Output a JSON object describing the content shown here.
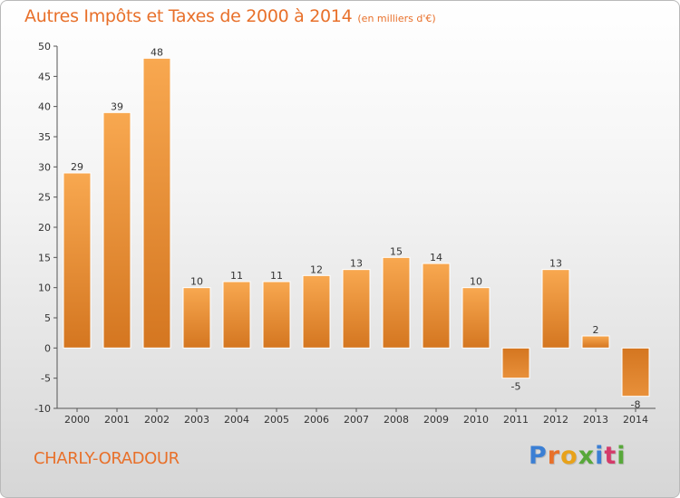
{
  "title": "Autres Impôts et Taxes de 2000 à 2014",
  "subtitle": "(en milliers d'€)",
  "commune": "CHARLY-ORADOUR",
  "logo": {
    "text": "Proxiti",
    "letters": [
      {
        "ch": "P",
        "color": "#3b7fd4"
      },
      {
        "ch": "r",
        "color": "#e8702a"
      },
      {
        "ch": "o",
        "color": "#e8a21a"
      },
      {
        "ch": "x",
        "color": "#58a83a"
      },
      {
        "ch": "i",
        "color": "#3b7fd4"
      },
      {
        "ch": "t",
        "color": "#d43b6a"
      },
      {
        "ch": "i",
        "color": "#58a83a"
      }
    ]
  },
  "colors": {
    "accent": "#e8702a",
    "bar_light": "#f8a850",
    "bar_dark": "#d47620",
    "axis": "#555555",
    "tick_text": "#333333"
  },
  "chart_data": {
    "type": "bar",
    "title": "Autres Impôts et Taxes de 2000 à 2014",
    "subtitle": "(en milliers d'€)",
    "categories": [
      "2000",
      "2001",
      "2002",
      "2003",
      "2004",
      "2005",
      "2006",
      "2007",
      "2008",
      "2009",
      "2010",
      "2011",
      "2012",
      "2013",
      "2014"
    ],
    "values": [
      29,
      39,
      48,
      10,
      11,
      11,
      12,
      13,
      15,
      14,
      10,
      -5,
      13,
      2,
      -8
    ],
    "data_labels": [
      "29",
      "39",
      "48",
      "10",
      "11",
      "11",
      "12",
      "13",
      "15",
      "14",
      "10",
      "-5",
      "13",
      "2",
      "-8"
    ],
    "ylim": [
      -10,
      50
    ],
    "yticks": [
      -10,
      -5,
      0,
      5,
      10,
      15,
      20,
      25,
      30,
      35,
      40,
      45,
      50
    ],
    "xlabel": "",
    "ylabel": "",
    "grid": false,
    "legend": "none"
  }
}
